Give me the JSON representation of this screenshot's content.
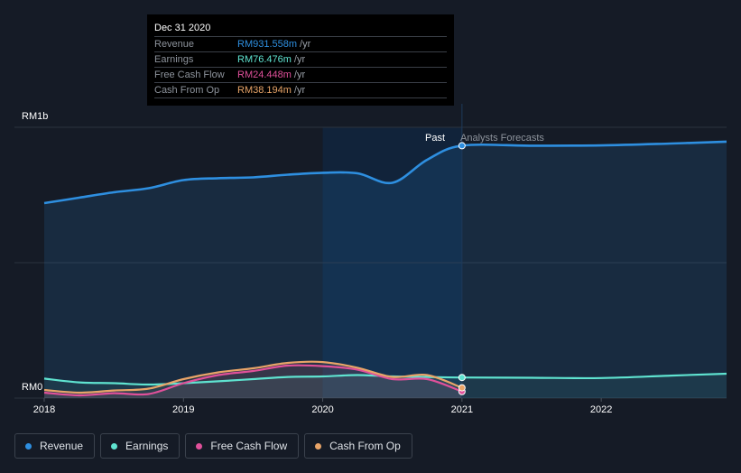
{
  "tooltip": {
    "date": "Dec 31 2020",
    "rows": [
      {
        "label": "Revenue",
        "value": "RM931.558m",
        "unit": "/yr",
        "color": "#2e8fe0"
      },
      {
        "label": "Earnings",
        "value": "RM76.476m",
        "unit": "/yr",
        "color": "#5fe3d0"
      },
      {
        "label": "Free Cash Flow",
        "value": "RM24.448m",
        "unit": "/yr",
        "color": "#e0509a"
      },
      {
        "label": "Cash From Op",
        "value": "RM38.194m",
        "unit": "/yr",
        "color": "#e8a468"
      }
    ]
  },
  "markers": {
    "past": "Past",
    "forecast": "Analysts Forecasts"
  },
  "legend": [
    {
      "label": "Revenue",
      "color": "#2e8fe0"
    },
    {
      "label": "Earnings",
      "color": "#5fe3d0"
    },
    {
      "label": "Free Cash Flow",
      "color": "#e0509a"
    },
    {
      "label": "Cash From Op",
      "color": "#e8a468"
    }
  ],
  "chart_data": {
    "type": "line",
    "y_tick_labels": [
      "RM1b",
      "RM0"
    ],
    "x_tick_labels": [
      "2018",
      "2019",
      "2020",
      "2021",
      "2022"
    ],
    "ylim": [
      0,
      1000
    ],
    "xlim": [
      2018,
      2022.9
    ],
    "grid": true,
    "split_at": 2021,
    "series": [
      {
        "name": "Revenue",
        "color": "#2e8fe0",
        "x": [
          2018,
          2018.25,
          2018.5,
          2018.75,
          2019,
          2019.25,
          2019.5,
          2019.75,
          2020,
          2020.25,
          2020.5,
          2020.75,
          2021,
          2021.5,
          2022,
          2022.5,
          2022.9
        ],
        "y": [
          720,
          740,
          760,
          775,
          805,
          812,
          815,
          825,
          832,
          830,
          795,
          880,
          932,
          932,
          933,
          940,
          947
        ]
      },
      {
        "name": "Earnings",
        "color": "#5fe3d0",
        "x": [
          2018,
          2018.25,
          2018.5,
          2018.75,
          2019,
          2019.25,
          2019.5,
          2019.75,
          2020,
          2020.25,
          2020.5,
          2020.75,
          2021,
          2021.5,
          2022,
          2022.5,
          2022.9
        ],
        "y": [
          72,
          58,
          55,
          50,
          55,
          62,
          70,
          78,
          80,
          85,
          80,
          78,
          76,
          75,
          74,
          83,
          90
        ]
      },
      {
        "name": "Free Cash Flow",
        "color": "#e0509a",
        "x": [
          2018,
          2018.25,
          2018.5,
          2018.75,
          2019,
          2019.25,
          2019.5,
          2019.75,
          2020,
          2020.25,
          2020.5,
          2020.75,
          2021
        ],
        "y": [
          20,
          10,
          18,
          15,
          55,
          85,
          100,
          120,
          118,
          105,
          70,
          70,
          24
        ]
      },
      {
        "name": "Cash From Op",
        "color": "#e8a468",
        "x": [
          2018,
          2018.25,
          2018.5,
          2018.75,
          2019,
          2019.25,
          2019.5,
          2019.75,
          2020,
          2020.25,
          2020.5,
          2020.75,
          2021
        ],
        "y": [
          30,
          20,
          28,
          35,
          70,
          95,
          110,
          130,
          133,
          112,
          78,
          85,
          38
        ]
      }
    ]
  }
}
